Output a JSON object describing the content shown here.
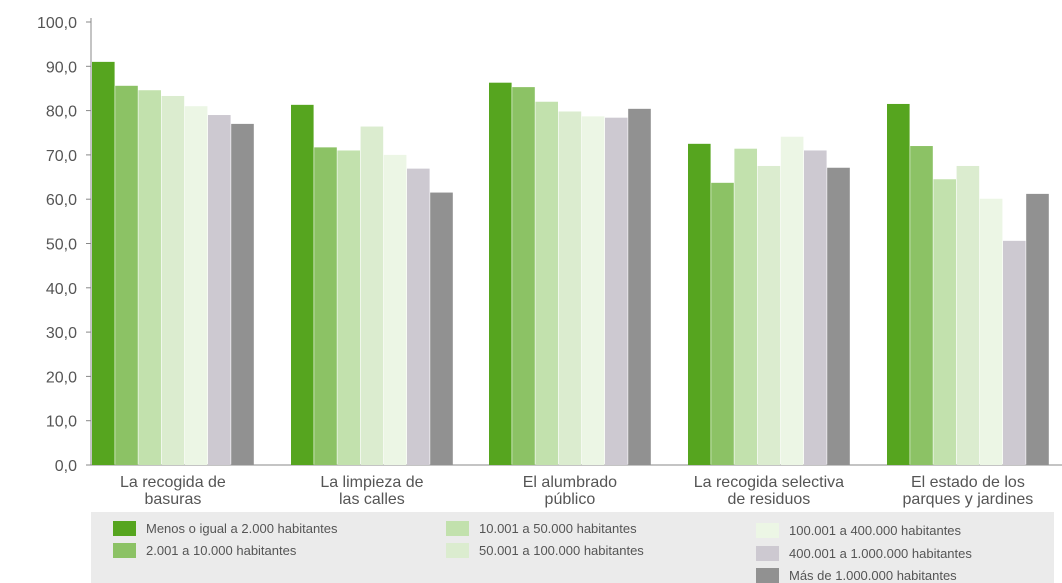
{
  "chart_data": {
    "type": "bar",
    "categories": [
      [
        "La recogida de",
        "basuras"
      ],
      [
        "La limpieza de",
        "las calles"
      ],
      [
        "El alumbrado",
        "público"
      ],
      [
        "La recogida selectiva",
        "de residuos"
      ],
      [
        "El estado de los",
        "parques y jardines"
      ]
    ],
    "ylim": [
      0,
      100
    ],
    "yticks": [
      "0,0",
      "10,0",
      "20,0",
      "30,0",
      "40,0",
      "50,0",
      "60,0",
      "70,0",
      "80,0",
      "90,0",
      "100,0"
    ],
    "grid": false,
    "legend_placement": "bottom",
    "series": [
      {
        "name": "Menos o igual a 2.000 habitantes",
        "color": "#56a51f",
        "values": [
          91.0,
          81.3,
          86.3,
          72.5,
          81.5
        ]
      },
      {
        "name": "2.001 a 10.000 habitantes",
        "color": "#8cc265",
        "values": [
          85.6,
          71.7,
          85.3,
          63.7,
          72.0
        ]
      },
      {
        "name": "10.001 a 50.000 habitantes",
        "color": "#c2e1ad",
        "values": [
          84.6,
          71.0,
          82.0,
          71.4,
          64.5
        ]
      },
      {
        "name": "50.001 a 100.000 habitantes",
        "color": "#dbeccf",
        "values": [
          83.3,
          76.4,
          79.8,
          67.5,
          67.5
        ]
      },
      {
        "name": "100.001 a 400.000 habitantes",
        "color": "#ecf6e5",
        "values": [
          81.0,
          70.0,
          78.7,
          74.1,
          60.1
        ]
      },
      {
        "name": "400.001 a 1.000.000 habitantes",
        "color": "#cdc9d1",
        "values": [
          79.0,
          66.9,
          78.4,
          71.0,
          50.6
        ]
      },
      {
        "name": "Más de 1.000.000 habitantes",
        "color": "#919191",
        "values": [
          77.0,
          61.5,
          80.4,
          67.1,
          61.2
        ]
      }
    ]
  }
}
